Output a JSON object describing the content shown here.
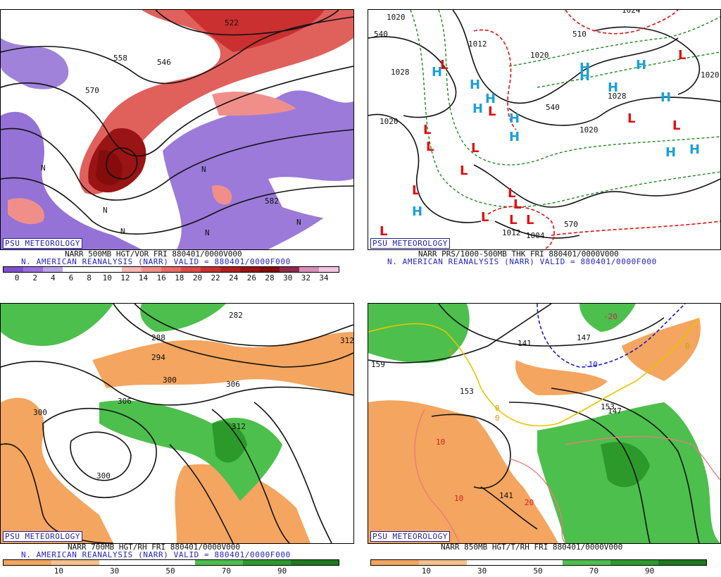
{
  "panels": [
    {
      "badge": "PSU METEOROLOGY",
      "caption_line1": "NARR 500MB HGT/VOR FRI 880401/0000V000",
      "caption_line2": "N. AMERICAN REANALYSIS (NARR) VALID = 880401/0000F000",
      "colorbar_ticks": [
        "0",
        "2",
        "4",
        "6",
        "8",
        "10",
        "12",
        "14",
        "16",
        "18",
        "20",
        "22",
        "24",
        "26",
        "28",
        "30",
        "32",
        "34"
      ],
      "colorbar_colors": [
        "#7f4fcf",
        "#9a6ee0",
        "#b9a3ea",
        "#ffffff",
        "#ffffff",
        "#ffffff",
        "#f7b7b3",
        "#f08f8a",
        "#e86a66",
        "#dd4a48",
        "#c9302f",
        "#b21f1f",
        "#991414",
        "#840c0c",
        "#8f2a4a",
        "#d98fb7",
        "#f4c5df"
      ],
      "contour_labels": [
        "522",
        "546",
        "558",
        "570",
        "582",
        "N",
        "N",
        "N",
        "N",
        "N",
        "N"
      ]
    },
    {
      "badge": "PSU METEOROLOGY",
      "caption_line1": "NARR PRS/1000-500MB THK FRI 880401/0000V000",
      "caption_line2": "N. AMERICAN REANALYSIS (NARR) VALID = 880401/0000F000",
      "contour_labels": [
        "1020",
        "1028",
        "1020",
        "1012",
        "1020",
        "1004",
        "1012",
        "1020",
        "1028",
        "540",
        "510",
        "540",
        "570",
        "1020",
        "1024"
      ],
      "high_symbol": "H",
      "low_symbol": "L"
    },
    {
      "badge": "PSU METEOROLOGY",
      "caption_line1": "NARR 700MB HGT/RH FRI 880401/0000V000",
      "caption_line2": "N. AMERICAN REANALYSIS (NARR) VALID = 880401/0000F000",
      "colorbar_ticks": [
        "10",
        "30",
        "50",
        "70",
        "90"
      ],
      "colorbar_colors": [
        "#f4a55f",
        "#f6c18e",
        "#ffffff",
        "#ffffff",
        "#4dbf4d",
        "#2b9a2b",
        "#1d7a1d"
      ],
      "contour_labels": [
        "282",
        "288",
        "294",
        "300",
        "306",
        "312",
        "306",
        "300",
        "312",
        "300"
      ]
    },
    {
      "badge": "PSU METEOROLOGY",
      "caption_line1": "NARR 850MB HGT/T/RH FRI 880401/0000V000",
      "colorbar_ticks": [
        "10",
        "30",
        "50",
        "70",
        "90"
      ],
      "colorbar_colors": [
        "#f4a55f",
        "#f6c18e",
        "#ffffff",
        "#ffffff",
        "#4dbf4d",
        "#2b9a2b",
        "#1d7a1d"
      ],
      "contour_labels": [
        "159",
        "153",
        "147",
        "141",
        "147",
        "153",
        "141",
        "-20",
        "-10",
        "0",
        "0",
        "10",
        "10",
        "20",
        "0",
        "0"
      ]
    }
  ]
}
